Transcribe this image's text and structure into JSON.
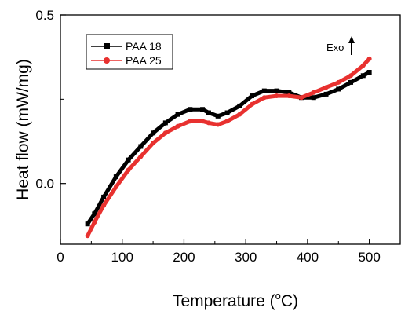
{
  "chart_data": {
    "type": "line",
    "xlabel_prefix": "Temperature (",
    "xlabel_unit_sup": "o",
    "xlabel_unit": "C)",
    "ylabel": "Heat flow (mW/mg)",
    "xlim": [
      0,
      550
    ],
    "ylim": [
      -0.18,
      0.5
    ],
    "xticks": [
      0,
      100,
      200,
      300,
      400,
      500
    ],
    "xtick_labels": [
      "0",
      "100",
      "200",
      "300",
      "400",
      "500"
    ],
    "yticks": [
      0.0,
      0.5
    ],
    "ytick_labels": [
      "0.0",
      "0.5"
    ],
    "grid": false,
    "legend_position": "top-left",
    "annotation": {
      "text": "Exo",
      "arrow": "up"
    },
    "series": [
      {
        "name": "PAA 18",
        "color": "#000000",
        "marker": "square",
        "x": [
          44,
          55,
          70,
          90,
          110,
          130,
          150,
          170,
          190,
          210,
          230,
          240,
          255,
          270,
          290,
          310,
          330,
          350,
          370,
          390,
          410,
          430,
          450,
          470,
          490,
          500
        ],
        "y": [
          -0.12,
          -0.09,
          -0.04,
          0.02,
          0.07,
          0.11,
          0.15,
          0.18,
          0.205,
          0.22,
          0.22,
          0.21,
          0.2,
          0.21,
          0.23,
          0.26,
          0.275,
          0.275,
          0.27,
          0.255,
          0.255,
          0.265,
          0.28,
          0.3,
          0.32,
          0.33
        ]
      },
      {
        "name": "PAA 25",
        "color": "#e8312f",
        "marker": "circle",
        "x": [
          44,
          55,
          70,
          90,
          110,
          130,
          150,
          170,
          190,
          210,
          230,
          240,
          255,
          270,
          290,
          310,
          330,
          350,
          370,
          390,
          410,
          430,
          450,
          470,
          490,
          500
        ],
        "y": [
          -0.155,
          -0.115,
          -0.065,
          -0.01,
          0.04,
          0.08,
          0.12,
          0.15,
          0.17,
          0.185,
          0.185,
          0.18,
          0.175,
          0.185,
          0.205,
          0.235,
          0.255,
          0.26,
          0.26,
          0.255,
          0.27,
          0.285,
          0.3,
          0.32,
          0.35,
          0.37
        ]
      }
    ]
  }
}
